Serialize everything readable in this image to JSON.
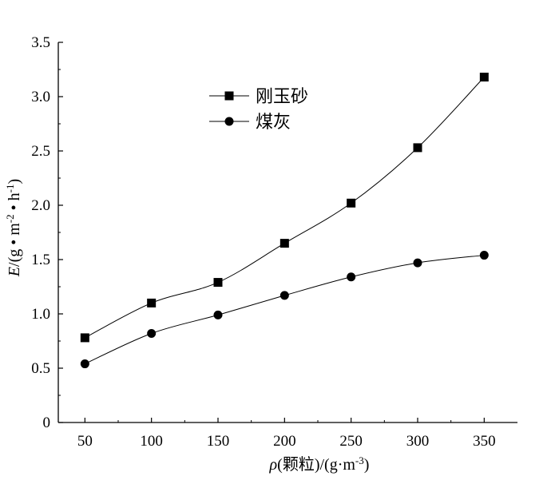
{
  "chart_data": {
    "type": "line",
    "xlabel_parts": [
      "ρ",
      "(颗粒)/(g·m",
      "-3",
      ")"
    ],
    "ylabel_parts": [
      "E",
      "/(g • m",
      "-2",
      " • h",
      "-1",
      ")"
    ],
    "x": [
      50,
      100,
      150,
      200,
      250,
      300,
      350
    ],
    "xlim": [
      30,
      375
    ],
    "xticks": [
      "50",
      "100",
      "150",
      "200",
      "250",
      "300",
      "350"
    ],
    "ylim": [
      0,
      3.5
    ],
    "yticks": [
      "0",
      "0.5",
      "1.0",
      "1.5",
      "2.0",
      "2.5",
      "3.0",
      "3.5"
    ],
    "series": [
      {
        "name": "刚玉砂",
        "marker": "square",
        "values": [
          0.78,
          1.1,
          1.29,
          1.65,
          2.02,
          2.53,
          3.18
        ]
      },
      {
        "name": "煤灰",
        "marker": "circle",
        "values": [
          0.54,
          0.82,
          0.99,
          1.17,
          1.34,
          1.47,
          1.54
        ]
      }
    ],
    "legend_position": "top-center",
    "grid": false,
    "line_color": "#000000"
  }
}
